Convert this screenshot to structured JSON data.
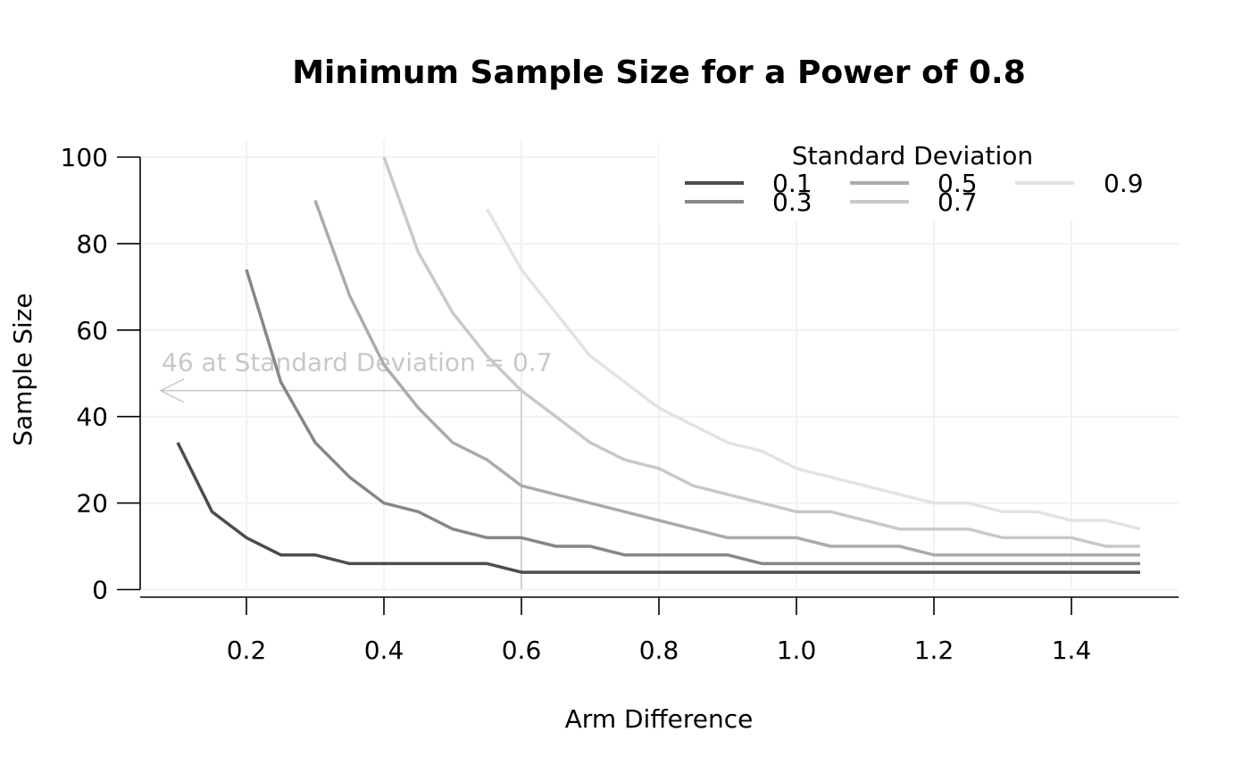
{
  "chart_data": {
    "type": "line",
    "title": "Minimum Sample Size for a Power of 0.8",
    "xlabel": "Arm Difference",
    "ylabel": "Sample Size",
    "xlim": [
      0.05,
      1.55
    ],
    "ylim": [
      -2,
      102
    ],
    "x_ticks": [
      0.2,
      0.4,
      0.6,
      0.8,
      1.0,
      1.2,
      1.4
    ],
    "x_tick_labels": [
      "0.2",
      "0.4",
      "0.6",
      "0.8",
      "1.0",
      "1.2",
      "1.4"
    ],
    "y_ticks": [
      0,
      20,
      40,
      60,
      80,
      100
    ],
    "y_tick_labels": [
      "0",
      "20",
      "40",
      "60",
      "80",
      "100"
    ],
    "grid": true,
    "legend": {
      "title": "Standard Deviation",
      "placement": "top-right"
    },
    "series": [
      {
        "name": "0.1",
        "color": "#4d4d4d",
        "points": [
          [
            0.1,
            34
          ],
          [
            0.15,
            18
          ],
          [
            0.2,
            12
          ],
          [
            0.25,
            8
          ],
          [
            0.3,
            8
          ],
          [
            0.35,
            6
          ],
          [
            0.4,
            6
          ],
          [
            0.45,
            6
          ],
          [
            0.5,
            6
          ],
          [
            0.55,
            6
          ],
          [
            0.6,
            4
          ],
          [
            0.65,
            4
          ],
          [
            0.7,
            4
          ],
          [
            0.75,
            4
          ],
          [
            0.8,
            4
          ],
          [
            0.85,
            4
          ],
          [
            0.9,
            4
          ],
          [
            0.95,
            4
          ],
          [
            1.0,
            4
          ],
          [
            1.05,
            4
          ],
          [
            1.1,
            4
          ],
          [
            1.15,
            4
          ],
          [
            1.2,
            4
          ],
          [
            1.25,
            4
          ],
          [
            1.3,
            4
          ],
          [
            1.35,
            4
          ],
          [
            1.4,
            4
          ],
          [
            1.45,
            4
          ],
          [
            1.5,
            4
          ]
        ]
      },
      {
        "name": "0.3",
        "color": "#878787",
        "points": [
          [
            0.2,
            74
          ],
          [
            0.25,
            48
          ],
          [
            0.3,
            34
          ],
          [
            0.35,
            26
          ],
          [
            0.4,
            20
          ],
          [
            0.45,
            18
          ],
          [
            0.5,
            14
          ],
          [
            0.55,
            12
          ],
          [
            0.6,
            12
          ],
          [
            0.65,
            10
          ],
          [
            0.7,
            10
          ],
          [
            0.75,
            8
          ],
          [
            0.8,
            8
          ],
          [
            0.85,
            8
          ],
          [
            0.9,
            8
          ],
          [
            0.95,
            6
          ],
          [
            1.0,
            6
          ],
          [
            1.05,
            6
          ],
          [
            1.1,
            6
          ],
          [
            1.15,
            6
          ],
          [
            1.2,
            6
          ],
          [
            1.25,
            6
          ],
          [
            1.3,
            6
          ],
          [
            1.35,
            6
          ],
          [
            1.4,
            6
          ],
          [
            1.45,
            6
          ],
          [
            1.5,
            6
          ]
        ]
      },
      {
        "name": "0.5",
        "color": "#ababab",
        "points": [
          [
            0.3,
            90
          ],
          [
            0.35,
            68
          ],
          [
            0.4,
            52
          ],
          [
            0.45,
            42
          ],
          [
            0.5,
            34
          ],
          [
            0.55,
            30
          ],
          [
            0.6,
            24
          ],
          [
            0.65,
            22
          ],
          [
            0.7,
            20
          ],
          [
            0.75,
            18
          ],
          [
            0.8,
            16
          ],
          [
            0.85,
            14
          ],
          [
            0.9,
            12
          ],
          [
            0.95,
            12
          ],
          [
            1.0,
            12
          ],
          [
            1.05,
            10
          ],
          [
            1.1,
            10
          ],
          [
            1.15,
            10
          ],
          [
            1.2,
            8
          ],
          [
            1.25,
            8
          ],
          [
            1.3,
            8
          ],
          [
            1.35,
            8
          ],
          [
            1.4,
            8
          ],
          [
            1.45,
            8
          ],
          [
            1.5,
            8
          ]
        ]
      },
      {
        "name": "0.7",
        "color": "#c9c9c9",
        "points": [
          [
            0.4,
            100
          ],
          [
            0.45,
            78
          ],
          [
            0.5,
            64
          ],
          [
            0.55,
            54
          ],
          [
            0.6,
            46
          ],
          [
            0.65,
            40
          ],
          [
            0.7,
            34
          ],
          [
            0.75,
            30
          ],
          [
            0.8,
            28
          ],
          [
            0.85,
            24
          ],
          [
            0.9,
            22
          ],
          [
            0.95,
            20
          ],
          [
            1.0,
            18
          ],
          [
            1.05,
            18
          ],
          [
            1.1,
            16
          ],
          [
            1.15,
            14
          ],
          [
            1.2,
            14
          ],
          [
            1.25,
            14
          ],
          [
            1.3,
            12
          ],
          [
            1.35,
            12
          ],
          [
            1.4,
            12
          ],
          [
            1.45,
            10
          ],
          [
            1.5,
            10
          ]
        ]
      },
      {
        "name": "0.9",
        "color": "#e3e3e3",
        "points": [
          [
            0.55,
            88
          ],
          [
            0.6,
            74
          ],
          [
            0.65,
            64
          ],
          [
            0.7,
            54
          ],
          [
            0.75,
            48
          ],
          [
            0.8,
            42
          ],
          [
            0.85,
            38
          ],
          [
            0.9,
            34
          ],
          [
            0.95,
            32
          ],
          [
            1.0,
            28
          ],
          [
            1.05,
            26
          ],
          [
            1.1,
            24
          ],
          [
            1.15,
            22
          ],
          [
            1.2,
            20
          ],
          [
            1.25,
            20
          ],
          [
            1.3,
            18
          ],
          [
            1.35,
            18
          ],
          [
            1.4,
            16
          ],
          [
            1.45,
            16
          ],
          [
            1.5,
            14
          ]
        ]
      }
    ],
    "annotation": {
      "text": "46 at Standard Deviation = 0.7",
      "x": 0.6,
      "y": 46,
      "color": "#c8c8c8"
    }
  }
}
